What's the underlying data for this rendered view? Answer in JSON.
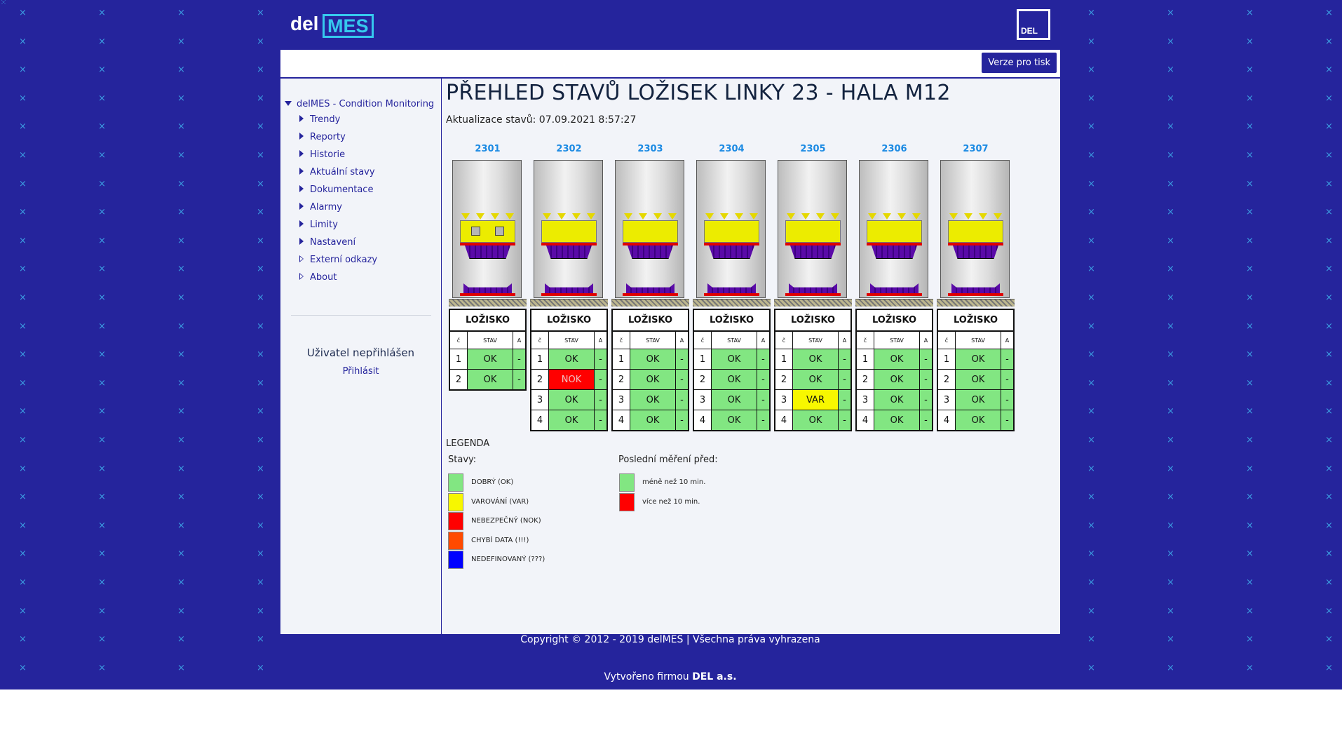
{
  "header": {
    "logo_del": "del",
    "logo_mes": "MES",
    "brand_logo_text": "DEL"
  },
  "toolbar": {
    "print_label": "Verze pro tisk"
  },
  "sidebar": {
    "root": "delMES - Condition Monitoring",
    "items": [
      {
        "label": "Trendy",
        "icon": "triangle-right-icon"
      },
      {
        "label": "Reporty",
        "icon": "triangle-right-icon"
      },
      {
        "label": "Historie",
        "icon": "triangle-right-icon"
      },
      {
        "label": "Aktuální stavy",
        "icon": "triangle-right-icon"
      },
      {
        "label": "Dokumentace",
        "icon": "triangle-right-icon"
      },
      {
        "label": "Alarmy",
        "icon": "triangle-right-icon"
      },
      {
        "label": "Limity",
        "icon": "triangle-right-icon"
      },
      {
        "label": "Nastavení",
        "icon": "triangle-right-icon"
      },
      {
        "label": "Externí odkazy",
        "icon": "triangle-right-outline-icon"
      },
      {
        "label": "About",
        "icon": "triangle-right-outline-icon"
      }
    ],
    "user_status": "Uživatel nepřihlášen",
    "login_link": "Přihlásit"
  },
  "main": {
    "title": "PŘEHLED STAVŮ LOŽISEK LINKY 23 - HALA M12",
    "update": "Aktualizace stavů: 07.09.2021 8:57:27",
    "table_head": "LOŽISKO",
    "col_no": "č",
    "col_state": "STAV",
    "col_a": "A",
    "units": [
      {
        "id": "2301",
        "rows": [
          {
            "n": "1",
            "state": "OK",
            "status": "ok",
            "a": "-"
          },
          {
            "n": "2",
            "state": "OK",
            "status": "ok",
            "a": "-"
          }
        ]
      },
      {
        "id": "2302",
        "rows": [
          {
            "n": "1",
            "state": "OK",
            "status": "ok",
            "a": "-"
          },
          {
            "n": "2",
            "state": "NOK",
            "status": "nok",
            "a": "-"
          },
          {
            "n": "3",
            "state": "OK",
            "status": "ok",
            "a": "-"
          },
          {
            "n": "4",
            "state": "OK",
            "status": "ok",
            "a": "-"
          }
        ]
      },
      {
        "id": "2303",
        "rows": [
          {
            "n": "1",
            "state": "OK",
            "status": "ok",
            "a": "-"
          },
          {
            "n": "2",
            "state": "OK",
            "status": "ok",
            "a": "-"
          },
          {
            "n": "3",
            "state": "OK",
            "status": "ok",
            "a": "-"
          },
          {
            "n": "4",
            "state": "OK",
            "status": "ok",
            "a": "-"
          }
        ]
      },
      {
        "id": "2304",
        "rows": [
          {
            "n": "1",
            "state": "OK",
            "status": "ok",
            "a": "-"
          },
          {
            "n": "2",
            "state": "OK",
            "status": "ok",
            "a": "-"
          },
          {
            "n": "3",
            "state": "OK",
            "status": "ok",
            "a": "-"
          },
          {
            "n": "4",
            "state": "OK",
            "status": "ok",
            "a": "-"
          }
        ]
      },
      {
        "id": "2305",
        "rows": [
          {
            "n": "1",
            "state": "OK",
            "status": "ok",
            "a": "-"
          },
          {
            "n": "2",
            "state": "OK",
            "status": "ok",
            "a": "-"
          },
          {
            "n": "3",
            "state": "VAR",
            "status": "var",
            "a": "-"
          },
          {
            "n": "4",
            "state": "OK",
            "status": "ok",
            "a": "-"
          }
        ]
      },
      {
        "id": "2306",
        "rows": [
          {
            "n": "1",
            "state": "OK",
            "status": "ok",
            "a": "-"
          },
          {
            "n": "2",
            "state": "OK",
            "status": "ok",
            "a": "-"
          },
          {
            "n": "3",
            "state": "OK",
            "status": "ok",
            "a": "-"
          },
          {
            "n": "4",
            "state": "OK",
            "status": "ok",
            "a": "-"
          }
        ]
      },
      {
        "id": "2307",
        "rows": [
          {
            "n": "1",
            "state": "OK",
            "status": "ok",
            "a": "-"
          },
          {
            "n": "2",
            "state": "OK",
            "status": "ok",
            "a": "-"
          },
          {
            "n": "3",
            "state": "OK",
            "status": "ok",
            "a": "-"
          },
          {
            "n": "4",
            "state": "OK",
            "status": "ok",
            "a": "-"
          }
        ]
      }
    ]
  },
  "legend": {
    "title": "LEGENDA",
    "states_title": "Stavy:",
    "states": [
      {
        "label": "DOBRÝ (OK)",
        "color": "#82e682"
      },
      {
        "label": "VAROVÁNÍ (VAR)",
        "color": "#f7f700"
      },
      {
        "label": "NEBEZPEČNÝ (NOK)",
        "color": "#ff0000"
      },
      {
        "label": "CHYBÍ DATA (!!!)",
        "color": "#ff4a00"
      },
      {
        "label": "NEDEFINOVANÝ (???)",
        "color": "#0000ff"
      }
    ],
    "last_title": "Poslední měření před:",
    "last": [
      {
        "label": "méně než 10 min.",
        "color": "#82e682"
      },
      {
        "label": "více než 10 min.",
        "color": "#ff0000"
      }
    ]
  },
  "footer": {
    "copyright": "Copyright © 2012 - 2019 delMES | Všechna práva vyhrazena",
    "made_prefix": "Vytvořeno firmou ",
    "made_company": "DEL a.s."
  },
  "colors": {
    "brand_blue": "#25249c",
    "accent_cyan": "#36c9ee",
    "unit_label": "#1b8ae3"
  }
}
